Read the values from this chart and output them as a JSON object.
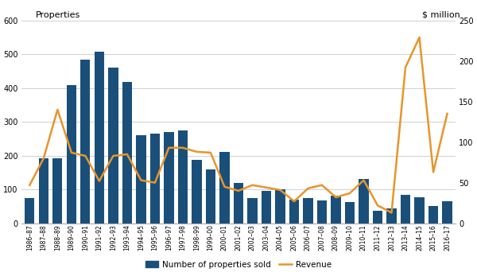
{
  "categories": [
    "1986–87",
    "1987–88",
    "1988–89",
    "1989–90",
    "1990–91",
    "1991–92",
    "1992–93",
    "1993–94",
    "1994–95",
    "1995–96",
    "1996–97",
    "1997–98",
    "1998–99",
    "1999–00",
    "2000–01",
    "2001–02",
    "2002–03",
    "2003–04",
    "2004–05",
    "2005–06",
    "2006–07",
    "2007–08",
    "2008–09",
    "2009–10",
    "2010–11",
    "2011–12",
    "2012–13",
    "2013–14",
    "2014–15",
    "2015–16",
    "2016–17"
  ],
  "bars": [
    75,
    193,
    193,
    408,
    483,
    507,
    460,
    418,
    260,
    265,
    270,
    275,
    188,
    160,
    210,
    120,
    75,
    95,
    100,
    70,
    75,
    68,
    82,
    62,
    130,
    38,
    45,
    85,
    78,
    52,
    65
  ],
  "revenue": [
    47,
    80,
    140,
    87,
    83,
    52,
    83,
    85,
    53,
    50,
    93,
    93,
    88,
    87,
    45,
    40,
    47,
    44,
    41,
    27,
    43,
    47,
    32,
    37,
    53,
    22,
    13,
    192,
    229,
    63,
    135
  ],
  "bar_color": "#1a4f7a",
  "line_color": "#e8952a",
  "left_ylabel": "Properties",
  "right_ylabel": "$ million",
  "left_ylim": [
    0,
    600
  ],
  "right_ylim": [
    0,
    250
  ],
  "left_yticks": [
    0,
    100,
    200,
    300,
    400,
    500,
    600
  ],
  "right_yticks": [
    0,
    50,
    100,
    150,
    200,
    250
  ],
  "legend_bar_label": "Number of properties sold",
  "legend_line_label": "Revenue",
  "background_color": "#ffffff",
  "grid_color": "#d0d0d0"
}
